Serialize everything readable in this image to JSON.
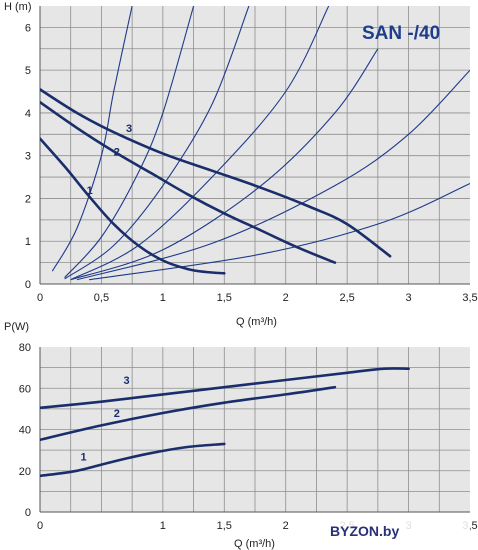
{
  "chart_data": [
    {
      "type": "line",
      "title": "SAN -/40",
      "ylabel": "H (m)",
      "xlabel": "Q (m³/h)",
      "xlim": [
        0,
        3.5
      ],
      "ylim": [
        0,
        6.5
      ],
      "x_ticks": [
        "0",
        "0,5",
        "1",
        "1,5",
        "2",
        "2,5",
        "3",
        "3,5"
      ],
      "y_ticks": [
        "0",
        "1",
        "2",
        "3",
        "4",
        "5",
        "6"
      ],
      "grid": true,
      "series": [
        {
          "name": "1",
          "points": [
            [
              0,
              3.4
            ],
            [
              0.2,
              2.75
            ],
            [
              0.4,
              2.05
            ],
            [
              0.6,
              1.4
            ],
            [
              0.8,
              0.9
            ],
            [
              1.0,
              0.55
            ],
            [
              1.2,
              0.35
            ],
            [
              1.35,
              0.28
            ],
            [
              1.5,
              0.25
            ]
          ]
        },
        {
          "name": "2",
          "points": [
            [
              0,
              4.25
            ],
            [
              0.3,
              3.65
            ],
            [
              0.6,
              3.1
            ],
            [
              0.9,
              2.6
            ],
            [
              1.2,
              2.1
            ],
            [
              1.5,
              1.65
            ],
            [
              1.8,
              1.25
            ],
            [
              2.1,
              0.85
            ],
            [
              2.4,
              0.5
            ]
          ]
        },
        {
          "name": "3",
          "points": [
            [
              0,
              4.55
            ],
            [
              0.3,
              4.0
            ],
            [
              0.6,
              3.55
            ],
            [
              1.0,
              3.05
            ],
            [
              1.4,
              2.65
            ],
            [
              1.8,
              2.25
            ],
            [
              2.2,
              1.8
            ],
            [
              2.5,
              1.4
            ],
            [
              2.85,
              0.65
            ]
          ]
        }
      ],
      "system_curves": [
        {
          "points": [
            [
              0.1,
              0.3
            ],
            [
              0.3,
              1.3
            ],
            [
              0.5,
              3.0
            ],
            [
              0.6,
              4.5
            ],
            [
              0.75,
              6.5
            ]
          ]
        },
        {
          "points": [
            [
              0.2,
              0.15
            ],
            [
              0.5,
              1.1
            ],
            [
              0.8,
              2.6
            ],
            [
              1.0,
              4.0
            ],
            [
              1.25,
              6.5
            ]
          ]
        },
        {
          "points": [
            [
              0.2,
              0.12
            ],
            [
              0.6,
              0.9
            ],
            [
              1.0,
              2.3
            ],
            [
              1.4,
              4.2
            ],
            [
              1.7,
              6.5
            ]
          ]
        },
        {
          "points": [
            [
              0.25,
              0.1
            ],
            [
              0.8,
              0.9
            ],
            [
              1.4,
              2.5
            ],
            [
              2.0,
              4.5
            ],
            [
              2.35,
              6.5
            ]
          ]
        },
        {
          "points": [
            [
              0.25,
              0.1
            ],
            [
              1.0,
              0.8
            ],
            [
              1.8,
              2.3
            ],
            [
              2.4,
              4.0
            ],
            [
              2.75,
              5.5
            ]
          ]
        },
        {
          "points": [
            [
              0.3,
              0.1
            ],
            [
              1.4,
              0.95
            ],
            [
              2.4,
              2.3
            ],
            [
              3.0,
              3.5
            ],
            [
              3.5,
              5.0
            ]
          ]
        },
        {
          "points": [
            [
              0.4,
              0.1
            ],
            [
              1.8,
              0.7
            ],
            [
              2.8,
              1.45
            ],
            [
              3.5,
              2.35
            ]
          ]
        }
      ]
    },
    {
      "type": "line",
      "ylabel": "P(W)",
      "xlabel": "Q (m³/h)",
      "xlim": [
        0,
        3.5
      ],
      "ylim": [
        0,
        80
      ],
      "x_ticks": [
        "0",
        "1",
        "1,5",
        "2",
        "2,5",
        "3",
        "3,5"
      ],
      "y_ticks": [
        "0",
        "20",
        "40",
        "60",
        "80"
      ],
      "grid": true,
      "series": [
        {
          "name": "1",
          "points": [
            [
              0,
              17.5
            ],
            [
              0.3,
              20
            ],
            [
              0.6,
              24.5
            ],
            [
              0.9,
              28.5
            ],
            [
              1.2,
              31.5
            ],
            [
              1.5,
              33
            ]
          ]
        },
        {
          "name": "2",
          "points": [
            [
              0,
              35
            ],
            [
              0.5,
              42
            ],
            [
              1.0,
              48
            ],
            [
              1.5,
              53
            ],
            [
              2.0,
              57
            ],
            [
              2.4,
              60.5
            ]
          ]
        },
        {
          "name": "3",
          "points": [
            [
              0,
              50.5
            ],
            [
              0.5,
              53.5
            ],
            [
              1.0,
              57
            ],
            [
              1.5,
              60.5
            ],
            [
              2.0,
              64
            ],
            [
              2.5,
              67.5
            ],
            [
              2.8,
              69.5
            ],
            [
              3.0,
              69.5
            ]
          ]
        }
      ]
    }
  ],
  "watermark": "BYZON.by"
}
